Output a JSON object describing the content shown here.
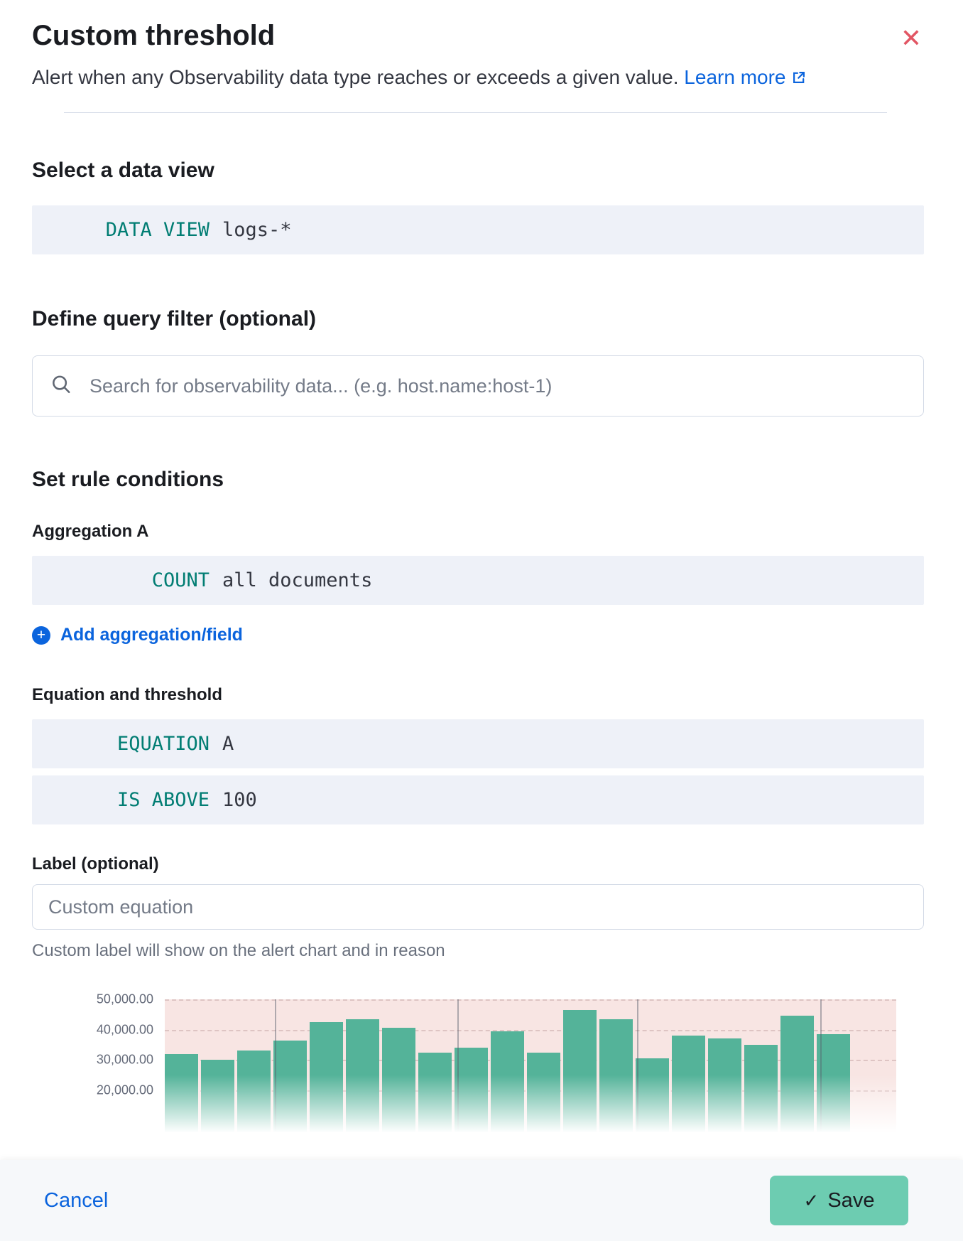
{
  "colors": {
    "accent_teal": "#017D73",
    "primary_blue": "#0B64DD",
    "danger_red": "#E25664",
    "save_button_fill": "#6DCCB1",
    "bar_green": "#54B399",
    "threshold_region_pink": "#F8E5E3"
  },
  "header": {
    "title": "Custom threshold",
    "description": "Alert when any Observability data type reaches or exceeds a given value.",
    "learn_more_label": "Learn more"
  },
  "data_view_section": {
    "heading": "Select a data view",
    "expression": {
      "keyword": "DATA VIEW",
      "value": "logs-*"
    }
  },
  "query_filter_section": {
    "heading": "Define query filter (optional)",
    "search_placeholder": "Search for observability data... (e.g. host.name:host-1)"
  },
  "rule_conditions_section": {
    "heading": "Set rule conditions",
    "aggregation_label": "Aggregation A",
    "aggregation_expression": {
      "keyword": "COUNT",
      "value": "all documents"
    },
    "add_aggregation_label": "Add aggregation/field",
    "equation_threshold_label": "Equation and threshold",
    "equation_expression": {
      "keyword": "EQUATION",
      "value": "A"
    },
    "threshold_expression": {
      "keyword": "IS ABOVE",
      "value": "100"
    },
    "custom_label_label": "Label (optional)",
    "custom_label_placeholder": "Custom equation",
    "custom_label_help": "Custom label will show on the alert chart and in reason"
  },
  "chart_data": {
    "type": "bar",
    "title": "",
    "xlabel": "",
    "ylabel": "",
    "ylim": [
      0,
      50000
    ],
    "grid": "dashed-horizontal",
    "legend": "off",
    "y_ticks": [
      {
        "value": 50000,
        "label": "50,000.00"
      },
      {
        "value": 40000,
        "label": "40,000.00"
      },
      {
        "value": 30000,
        "label": "30,000.00"
      },
      {
        "value": 20000,
        "label": "20,000.00"
      }
    ],
    "values": [
      32000,
      30000,
      33000,
      36500,
      42500,
      43500,
      40500,
      32500,
      34000,
      39500,
      32500,
      46500,
      43500,
      30500,
      38000,
      37000,
      35000,
      44500,
      38500
    ],
    "x_gridlines_pct": [
      15,
      40,
      64.6,
      89.6
    ],
    "bar_color": "#54B399",
    "above_threshold_bg": "#F8E5E3"
  },
  "footer": {
    "cancel_label": "Cancel",
    "save_label": "Save"
  },
  "icons": {
    "close": "✕",
    "save_check": "✓",
    "add_plus": "+"
  }
}
